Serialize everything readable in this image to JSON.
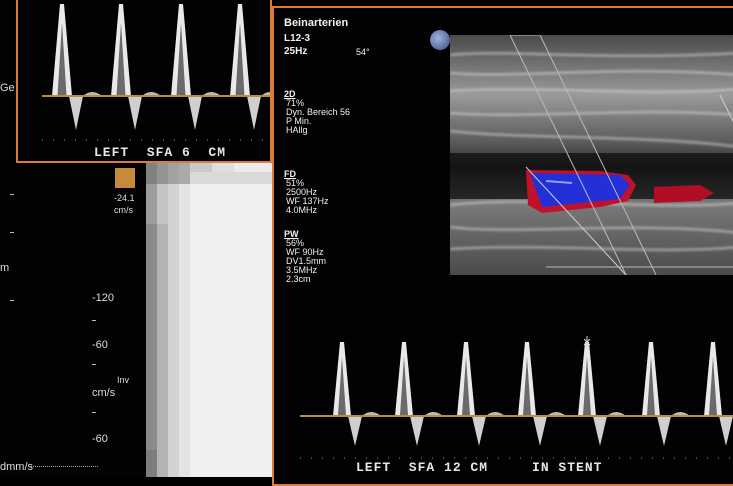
{
  "background_panel": {
    "partial_label_ge": "Ge",
    "velocity_readout": "-24.1",
    "velocity_unit": "cm/s",
    "scale_120": "-120",
    "scale_60_top": "-60",
    "scale_cms": "cm/s",
    "scale_inv": "Inv",
    "scale_60_bottom": "-60",
    "sweep_label": "dmm/s",
    "partial_label_m": "m"
  },
  "top_panel": {
    "caption": "LEFT  SFA 6  CM"
  },
  "main_panel": {
    "title": "Beinarterien",
    "probe": "L12-3",
    "frame_rate": "25Hz",
    "angle": "54°",
    "params_2d": [
      "2D",
      "71%",
      "Dyn. Bereich 56",
      "P Min.",
      "HAllg"
    ],
    "params_fd": [
      "FD",
      "51%",
      "2500Hz",
      "WF 137Hz",
      "4.0MHz"
    ],
    "params_pw": [
      "PW",
      "56%",
      "WF 90Hz",
      "DV1.5mm",
      "3.5MHz",
      "2.3cm"
    ],
    "caption": "LEFT  SFA 12 CM     IN STENT"
  },
  "colors": {
    "panel_border": "#e0793a",
    "baseline": "#c48a3a",
    "doppler_blue": "#2330d8",
    "doppler_red": "#c0102a"
  }
}
